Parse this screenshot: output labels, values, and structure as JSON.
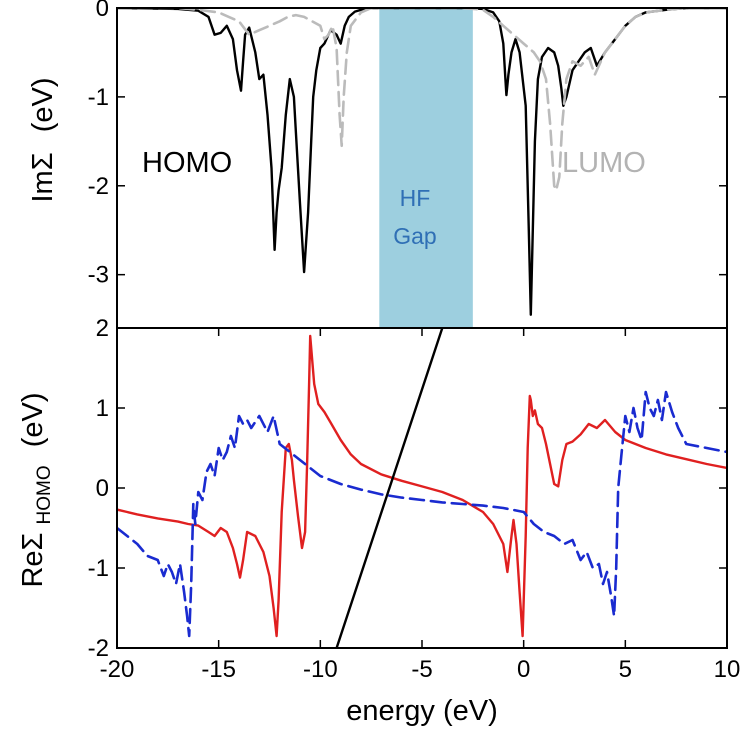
{
  "chart_data": [
    {
      "type": "line",
      "panel": "top",
      "ylabel_main": "ImΣ",
      "ylabel_unit": "(eV)",
      "xlim": [
        -20,
        10
      ],
      "ylim": [
        -3.6,
        0
      ],
      "yticks": [
        "0",
        "-1",
        "-2",
        "-3"
      ],
      "annotations": {
        "homo": "HOMO",
        "lumo": "LUMO",
        "gap_line1": "HF",
        "gap_line2": "Gap"
      },
      "gap_region": {
        "x": [
          -7.1,
          -2.5
        ],
        "color": "#9dcfdf"
      },
      "series": [
        {
          "color": "#000000",
          "style": "solid",
          "x": [
            -20,
            -17,
            -16,
            -15.5,
            -15.2,
            -14.9,
            -14.6,
            -14.3,
            -14.1,
            -13.9,
            -13.8,
            -13.7,
            -13.5,
            -13.2,
            -13,
            -12.8,
            -12.6,
            -12.4,
            -12.25,
            -12.15,
            -12.05,
            -11.9,
            -11.7,
            -11.5,
            -11.3,
            -11.2,
            -11,
            -10.8,
            -10.6,
            -10.45,
            -10.35,
            -10.2,
            -10,
            -9.8,
            -9.5,
            -9.2,
            -9,
            -8.8,
            -8.6,
            -8.3,
            -8,
            -7.5,
            -7,
            -5,
            -3,
            -2,
            -1.5,
            -1.2,
            -1,
            -0.9,
            -0.85,
            -0.75,
            -0.6,
            -0.4,
            -0.2,
            0.1,
            0.25,
            0.35,
            0.45,
            0.55,
            0.7,
            0.9,
            1.2,
            1.5,
            1.7,
            1.85,
            1.95,
            2.1,
            2.4,
            2.7,
            3,
            3.3,
            3.6,
            4,
            4.5,
            5,
            5.5,
            6,
            7,
            8,
            10
          ],
          "y": [
            0,
            -0.01,
            -0.03,
            -0.1,
            -0.3,
            -0.28,
            -0.2,
            -0.35,
            -0.7,
            -0.93,
            -0.6,
            -0.3,
            -0.22,
            -0.5,
            -0.8,
            -0.75,
            -1.2,
            -1.8,
            -2.72,
            -2.3,
            -2.05,
            -1.8,
            -1.2,
            -0.8,
            -1.0,
            -1.4,
            -2.2,
            -2.97,
            -2.3,
            -1.5,
            -1.0,
            -0.7,
            -0.45,
            -0.4,
            -0.25,
            -0.3,
            -0.4,
            -0.2,
            -0.1,
            -0.04,
            -0.02,
            0,
            0,
            0,
            0,
            -0.01,
            -0.05,
            -0.15,
            -0.4,
            -0.8,
            -0.98,
            -0.75,
            -0.5,
            -0.35,
            -0.5,
            -1.1,
            -2.5,
            -3.45,
            -2.5,
            -1.5,
            -0.8,
            -0.55,
            -0.45,
            -0.5,
            -0.65,
            -0.9,
            -1.1,
            -1.0,
            -0.7,
            -0.6,
            -0.5,
            -0.45,
            -0.65,
            -0.5,
            -0.35,
            -0.2,
            -0.1,
            -0.05,
            -0.02,
            0,
            0
          ]
        },
        {
          "color": "#bbbbbb",
          "style": "dashed",
          "x": [
            -20,
            -17,
            -16,
            -15,
            -14.5,
            -14,
            -13.5,
            -13,
            -12.5,
            -12,
            -11.6,
            -11.2,
            -10.8,
            -10.4,
            -10,
            -9.8,
            -9.6,
            -9.4,
            -9.2,
            -9.05,
            -8.95,
            -8.85,
            -8.7,
            -8.5,
            -8,
            -7.5,
            -5,
            -3,
            -2,
            -1.5,
            -1,
            -0.5,
            0,
            0.5,
            0.8,
            1.1,
            1.3,
            1.5,
            1.6,
            1.75,
            1.9,
            2.1,
            2.4,
            2.8,
            3.2,
            3.5,
            4,
            4.5,
            5,
            5.5,
            6,
            7,
            8,
            10
          ],
          "y": [
            0,
            0,
            -0.02,
            -0.05,
            -0.1,
            -0.15,
            -0.3,
            -0.25,
            -0.2,
            -0.15,
            -0.1,
            -0.08,
            -0.1,
            -0.15,
            -0.2,
            -0.35,
            -0.3,
            -0.2,
            -0.45,
            -1.2,
            -1.55,
            -1.0,
            -0.5,
            -0.2,
            -0.05,
            0,
            0,
            0,
            -0.02,
            -0.1,
            -0.2,
            -0.3,
            -0.4,
            -0.5,
            -0.6,
            -0.8,
            -1.3,
            -2.0,
            -2.05,
            -1.9,
            -1.3,
            -0.8,
            -0.6,
            -0.65,
            -0.55,
            -0.75,
            -0.5,
            -0.35,
            -0.2,
            -0.1,
            -0.05,
            -0.02,
            0,
            0
          ]
        }
      ]
    },
    {
      "type": "line",
      "panel": "bottom",
      "ylabel_main": "ReΣ",
      "ylabel_sub": "HOMO",
      "ylabel_unit": "(eV)",
      "xlabel": "energy (eV)",
      "xlim": [
        -20,
        10
      ],
      "ylim": [
        -2,
        2
      ],
      "xticks": [
        "-20",
        "-15",
        "-10",
        "-5",
        "0",
        "5",
        "10"
      ],
      "yticks": [
        "2",
        "1",
        "0",
        "-1",
        "-2"
      ],
      "series": [
        {
          "color": "#e02020",
          "style": "solid",
          "x": [
            -20,
            -19,
            -18,
            -17,
            -16.5,
            -16,
            -15.5,
            -15.2,
            -14.9,
            -14.6,
            -14.3,
            -14.1,
            -13.95,
            -13.8,
            -13.6,
            -13.2,
            -12.8,
            -12.5,
            -12.3,
            -12.15,
            -12.05,
            -11.9,
            -11.7,
            -11.55,
            -11.4,
            -11.3,
            -11.1,
            -10.9,
            -10.75,
            -10.65,
            -10.55,
            -10.5,
            -10.45,
            -10.3,
            -10.1,
            -9.8,
            -9.5,
            -9,
            -8.5,
            -8,
            -7,
            -6,
            -5,
            -4,
            -3,
            -2,
            -1.5,
            -1,
            -0.8,
            -0.6,
            -0.5,
            -0.35,
            -0.2,
            -0.05,
            0.1,
            0.2,
            0.3,
            0.35,
            0.45,
            0.55,
            0.7,
            0.9,
            1.1,
            1.3,
            1.5,
            1.7,
            1.9,
            2.1,
            2.4,
            2.8,
            3.2,
            3.6,
            4,
            4.5,
            5,
            6,
            7,
            8,
            9,
            10
          ],
          "y": [
            -0.27,
            -0.33,
            -0.38,
            -0.42,
            -0.45,
            -0.47,
            -0.55,
            -0.6,
            -0.5,
            -0.55,
            -0.75,
            -0.95,
            -1.12,
            -0.9,
            -0.55,
            -0.6,
            -0.8,
            -1.1,
            -1.5,
            -1.85,
            -1.4,
            -0.3,
            0.5,
            0.55,
            0.35,
            0.1,
            -0.35,
            -0.75,
            -0.55,
            0.3,
            1.3,
            1.9,
            1.75,
            1.3,
            1.05,
            0.95,
            0.82,
            0.6,
            0.42,
            0.3,
            0.17,
            0.09,
            0.02,
            -0.05,
            -0.15,
            -0.3,
            -0.45,
            -0.7,
            -1.05,
            -0.6,
            -0.4,
            -0.7,
            -1.3,
            -1.85,
            -0.6,
            0.5,
            1.15,
            1.1,
            0.9,
            0.97,
            0.8,
            0.75,
            0.55,
            0.3,
            0.05,
            0.02,
            0.35,
            0.55,
            0.58,
            0.67,
            0.8,
            0.75,
            0.85,
            0.7,
            0.6,
            0.5,
            0.42,
            0.36,
            0.3,
            0.25
          ]
        },
        {
          "color": "#1a2bd0",
          "style": "dashed",
          "x": [
            -20,
            -19,
            -18.5,
            -18,
            -17.7,
            -17.5,
            -17.3,
            -17.1,
            -16.9,
            -16.7,
            -16.55,
            -16.45,
            -16.35,
            -16.25,
            -16.15,
            -16,
            -15.8,
            -15.6,
            -15.4,
            -15.2,
            -15,
            -14.8,
            -14.6,
            -14.4,
            -14.2,
            -14,
            -13.8,
            -13.6,
            -13.4,
            -13,
            -12.6,
            -12.3,
            -12,
            -11,
            -10,
            -9,
            -8,
            -7,
            -6,
            -5,
            -4,
            -3,
            -2,
            -1,
            0,
            0.5,
            1,
            1.5,
            2,
            2.4,
            2.8,
            3.1,
            3.4,
            3.7,
            3.9,
            4.1,
            4.3,
            4.45,
            4.55,
            4.65,
            4.8,
            5,
            5.2,
            5.4,
            5.6,
            5.8,
            6,
            6.2,
            6.4,
            6.6,
            6.8,
            7,
            7.3,
            7.6,
            8,
            9,
            10
          ],
          "y": [
            -0.5,
            -0.7,
            -0.85,
            -0.9,
            -1.1,
            -0.95,
            -1.05,
            -1.2,
            -0.95,
            -1.3,
            -1.6,
            -1.85,
            -1.2,
            -0.2,
            -0.45,
            -0.05,
            -0.15,
            0.2,
            0.3,
            0.15,
            0.5,
            0.35,
            0.45,
            0.65,
            0.5,
            0.9,
            0.8,
            0.85,
            0.75,
            0.9,
            0.7,
            0.9,
            0.55,
            0.35,
            0.15,
            0.05,
            -0.02,
            -0.08,
            -0.12,
            -0.15,
            -0.18,
            -0.2,
            -0.22,
            -0.25,
            -0.3,
            -0.45,
            -0.55,
            -0.6,
            -0.7,
            -0.65,
            -0.9,
            -0.8,
            -1.0,
            -0.95,
            -1.2,
            -1.05,
            -1.35,
            -1.6,
            -1.0,
            0,
            0.4,
            0.9,
            0.7,
            1.0,
            0.75,
            0.6,
            1.2,
            1.0,
            0.9,
            1.1,
            0.85,
            1.2,
            0.95,
            0.75,
            0.55,
            0.5,
            0.45
          ]
        },
        {
          "color": "#000000",
          "style": "solid",
          "x": [
            -9.2,
            -4.0
          ],
          "y": [
            -2.0,
            2.0
          ]
        }
      ]
    }
  ]
}
